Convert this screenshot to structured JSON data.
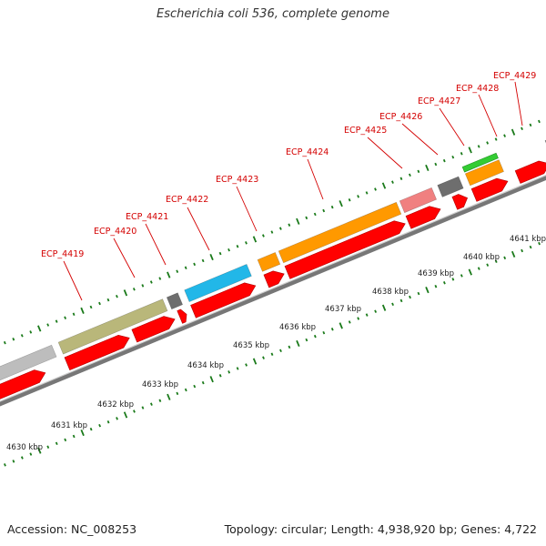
{
  "title": "Escherichia coli 536, complete genome",
  "footer": {
    "accession": "Accession: NC_008253",
    "summary": "Topology: circular; Length: 4,938,920 bp; Genes: 4,722"
  },
  "colors": {
    "cds": "#ff0000",
    "backbone": "#888888",
    "tick": "#1a7a1a",
    "label": "#d40000"
  },
  "kbp_labels": [
    "4630 kbp",
    "4631 kbp",
    "4632 kbp",
    "4633 kbp",
    "4634 kbp",
    "4635 kbp",
    "4636 kbp",
    "4637 kbp",
    "4638 kbp",
    "4639 kbp",
    "4640 kbp",
    "4641 kbp"
  ],
  "gene_labels": [
    "ECP_4419",
    "ECP_4420",
    "ECP_4421",
    "ECP_4422",
    "ECP_4423",
    "ECP_4424",
    "ECP_4425",
    "ECP_4426",
    "ECP_4427",
    "ECP_4428",
    "ECP_4429"
  ]
}
